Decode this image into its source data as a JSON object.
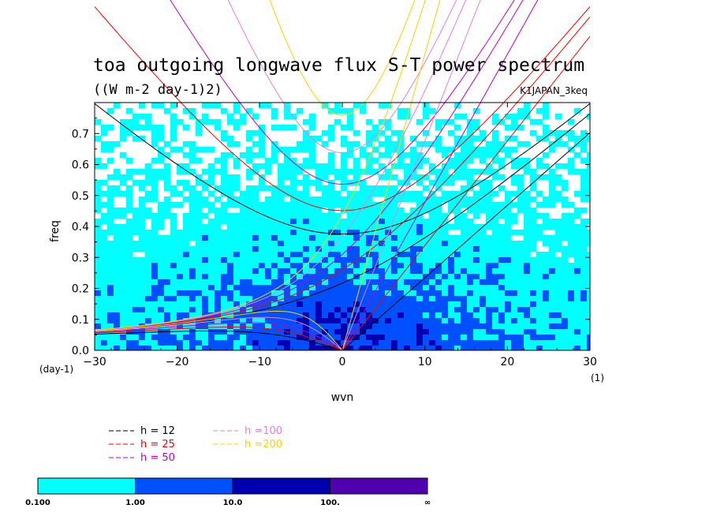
{
  "chart_data": {
    "type": "heatmap",
    "title": "toa outgoing longwave flux S-T power spectrum",
    "units": "((W m-2 day-1)2)",
    "experiment": "K1JAPAN_3keq",
    "xlabel": "wvn",
    "ylabel": "freq",
    "x_unit": "(1)",
    "y_unit": "(day-1)",
    "xlim": [
      -30,
      30
    ],
    "ylim": [
      0,
      0.8
    ],
    "x_ticks": [
      -30,
      -20,
      -10,
      0,
      10,
      20,
      30
    ],
    "y_ticks": [
      0.0,
      0.1,
      0.2,
      0.3,
      0.4,
      0.5,
      0.6,
      0.7
    ],
    "x_tick_labels": [
      "−30",
      "−20",
      "−10",
      "0",
      "10",
      "20",
      "30"
    ],
    "y_tick_labels": [
      "0.0",
      "0.1",
      "0.2",
      "0.3",
      "0.4",
      "0.5",
      "0.6",
      "0.7"
    ],
    "colorbar": {
      "levels": [
        "0.100",
        "1.00",
        "10.0",
        "100.",
        "∞"
      ],
      "colors": [
        "#00ffff",
        "#0050ff",
        "#0000b0",
        "#5000b0"
      ]
    },
    "dispersion_curves": [
      {
        "name": "h = 12",
        "h": 12,
        "color": "#000000"
      },
      {
        "name": "h = 25",
        "h": 25,
        "color": "#ff0000"
      },
      {
        "name": "h = 50",
        "h": 50,
        "color": "#c000c0"
      },
      {
        "name": "h =100",
        "h": 100,
        "color": "#e080e0"
      },
      {
        "name": "h =200",
        "h": 200,
        "color": "#ffd000"
      }
    ]
  }
}
